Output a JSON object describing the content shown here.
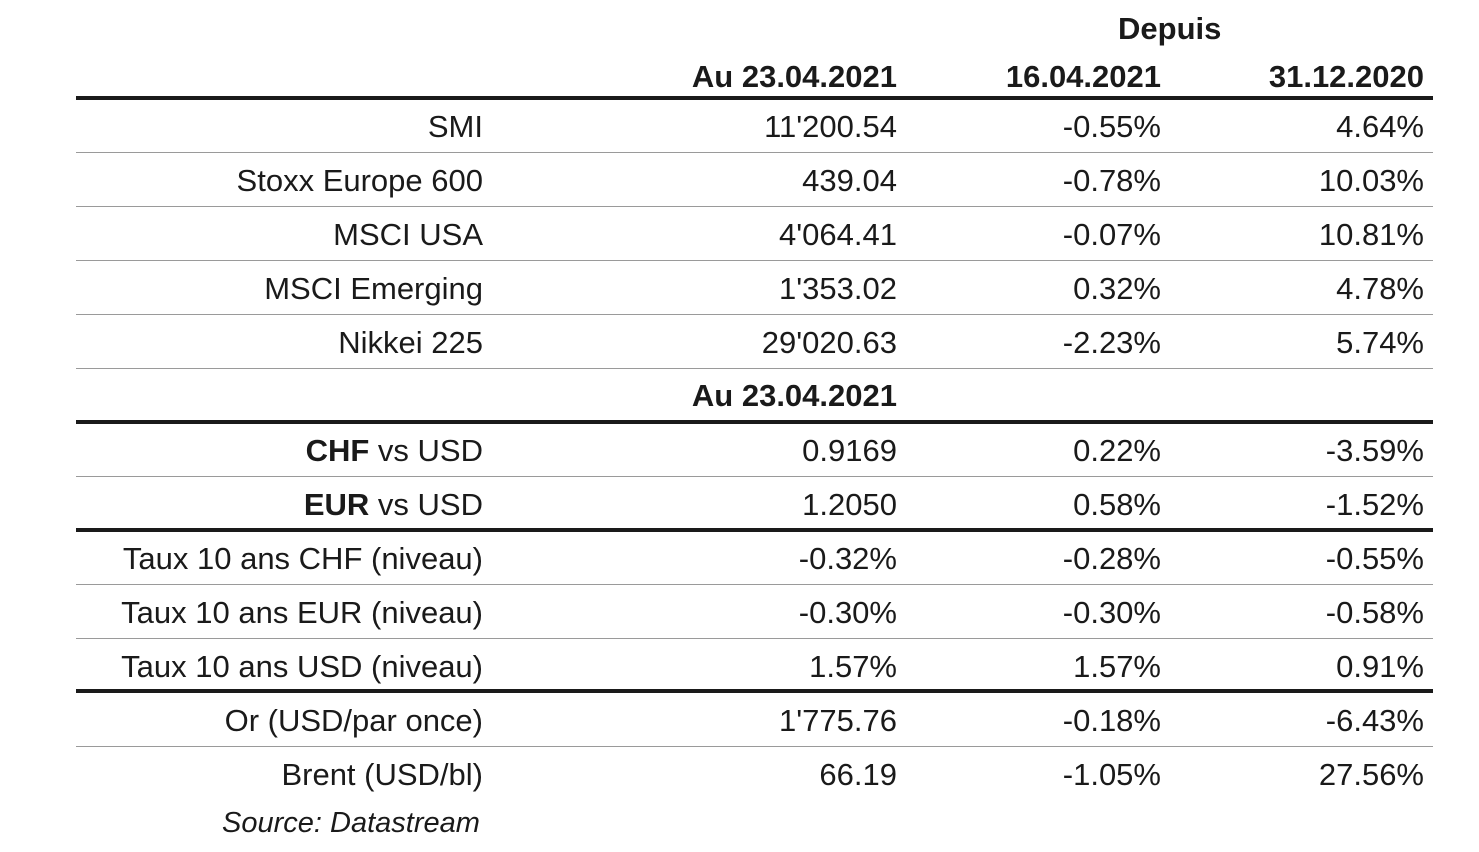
{
  "header": {
    "since_label": "Depuis",
    "col_date": "Au 23.04.2021",
    "col_since_week": "16.04.2021",
    "col_since_year": "31.12.2020"
  },
  "indices": [
    {
      "name": "SMI",
      "value": "11'200.54",
      "week": "-0.55%",
      "ytd": "4.64%"
    },
    {
      "name": "Stoxx Europe 600",
      "value": "439.04",
      "week": "-0.78%",
      "ytd": "10.03%"
    },
    {
      "name": "MSCI USA",
      "value": "4'064.41",
      "week": "-0.07%",
      "ytd": "10.81%"
    },
    {
      "name": "MSCI Emerging",
      "value": "1'353.02",
      "week": "0.32%",
      "ytd": "4.78%"
    },
    {
      "name": "Nikkei 225",
      "value": "29'020.63",
      "week": "-2.23%",
      "ytd": "5.74%"
    }
  ],
  "section2_label": "Au 23.04.2021",
  "fx": [
    {
      "bold_part": "CHF",
      "rest": " vs USD",
      "value": "0.9169",
      "week": "0.22%",
      "ytd": "-3.59%"
    },
    {
      "bold_part": "EUR",
      "rest": " vs USD",
      "value": "1.2050",
      "week": "0.58%",
      "ytd": "-1.52%"
    }
  ],
  "rates": [
    {
      "name": "Taux 10 ans CHF (niveau)",
      "value": "-0.32%",
      "week": "-0.28%",
      "ytd": "-0.55%"
    },
    {
      "name": "Taux 10 ans EUR (niveau)",
      "value": "-0.30%",
      "week": "-0.30%",
      "ytd": "-0.58%"
    },
    {
      "name": "Taux 10 ans USD (niveau)",
      "value": "1.57%",
      "week": "1.57%",
      "ytd": "0.91%"
    }
  ],
  "commodities": [
    {
      "name": "Or (USD/par once)",
      "value": "1'775.76",
      "week": "-0.18%",
      "ytd": "-6.43%"
    },
    {
      "name": "Brent (USD/bl)",
      "value": "66.19",
      "week": "-1.05%",
      "ytd": "27.56%"
    }
  ],
  "source": "Source: Datastream"
}
